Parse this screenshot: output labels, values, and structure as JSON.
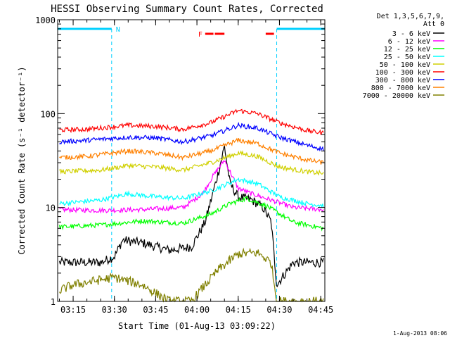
{
  "chart_data": {
    "type": "line",
    "title": "HESSI Observing Summary Count Rates, Corrected",
    "ylabel": "Corrected Count Rate (s⁻¹ detector⁻¹)",
    "xlabel": "Start Time (01-Aug-13 03:09:22)",
    "stamp": "1-Aug-2013 08:06",
    "y_scale": "log",
    "ylim": [
      1,
      1000
    ],
    "xlim": [
      "03:09:22",
      "04:46:30"
    ],
    "x_ticks": [
      "03:15",
      "03:30",
      "03:45",
      "04:00",
      "04:15",
      "04:30",
      "04:45"
    ],
    "y_ticks": [
      "1",
      "10",
      "100",
      "1000"
    ],
    "legend_header": [
      "Det 1,3,5,6,7,9,",
      "Att 0"
    ],
    "legend_position": "right",
    "flags": [
      {
        "label": "N",
        "color": "#00d0ff",
        "spans": [
          [
            "03:09:22",
            "03:29"
          ],
          [
            "04:29",
            "04:46:30"
          ]
        ],
        "dashed_lines": [
          "03:29",
          "04:29",
          "04:46:30"
        ]
      },
      {
        "label": "F",
        "color": "#ff0000",
        "spans": [
          [
            "04:03",
            "04:06"
          ],
          [
            "04:06:30",
            "04:10"
          ],
          [
            "04:25",
            "04:28"
          ]
        ]
      }
    ],
    "series": [
      {
        "name": "3 - 6 keV",
        "color": "#000000",
        "values": [
          {
            "x": "03:10",
            "y": 2.6
          },
          {
            "x": "03:25",
            "y": 2.6
          },
          {
            "x": "03:30",
            "y": 3.0
          },
          {
            "x": "03:33",
            "y": 4.5
          },
          {
            "x": "03:40",
            "y": 4.2
          },
          {
            "x": "03:50",
            "y": 3.5
          },
          {
            "x": "03:58",
            "y": 3.8
          },
          {
            "x": "04:03",
            "y": 7
          },
          {
            "x": "04:06",
            "y": 15
          },
          {
            "x": "04:08",
            "y": 25
          },
          {
            "x": "04:10",
            "y": 45
          },
          {
            "x": "04:12",
            "y": 18
          },
          {
            "x": "04:15",
            "y": 13
          },
          {
            "x": "04:20",
            "y": 12
          },
          {
            "x": "04:24",
            "y": 10
          },
          {
            "x": "04:27",
            "y": 7
          },
          {
            "x": "04:29",
            "y": 1.5
          },
          {
            "x": "04:35",
            "y": 2.6
          },
          {
            "x": "04:46",
            "y": 2.6
          }
        ]
      },
      {
        "name": "6 - 12 keV",
        "color": "#ff00ff",
        "values": [
          {
            "x": "03:10",
            "y": 9.5
          },
          {
            "x": "03:25",
            "y": 9.3
          },
          {
            "x": "03:40",
            "y": 9.5
          },
          {
            "x": "03:55",
            "y": 10
          },
          {
            "x": "04:02",
            "y": 14
          },
          {
            "x": "04:06",
            "y": 22
          },
          {
            "x": "04:10",
            "y": 32
          },
          {
            "x": "04:15",
            "y": 16
          },
          {
            "x": "04:20",
            "y": 14
          },
          {
            "x": "04:27",
            "y": 12
          },
          {
            "x": "04:35",
            "y": 10
          },
          {
            "x": "04:46",
            "y": 9.5
          }
        ]
      },
      {
        "name": "12 - 25 keV",
        "color": "#00ff00",
        "values": [
          {
            "x": "03:10",
            "y": 6.2
          },
          {
            "x": "03:25",
            "y": 6.5
          },
          {
            "x": "03:40",
            "y": 7.2
          },
          {
            "x": "03:55",
            "y": 6.8
          },
          {
            "x": "04:05",
            "y": 8.5
          },
          {
            "x": "04:12",
            "y": 11
          },
          {
            "x": "04:18",
            "y": 12.5
          },
          {
            "x": "04:25",
            "y": 10.5
          },
          {
            "x": "04:35",
            "y": 7
          },
          {
            "x": "04:46",
            "y": 6
          }
        ]
      },
      {
        "name": "25 - 50 keV",
        "color": "#00ffff",
        "values": [
          {
            "x": "03:10",
            "y": 11
          },
          {
            "x": "03:25",
            "y": 12
          },
          {
            "x": "03:35",
            "y": 14
          },
          {
            "x": "03:45",
            "y": 13
          },
          {
            "x": "03:55",
            "y": 12.5
          },
          {
            "x": "04:05",
            "y": 15
          },
          {
            "x": "04:15",
            "y": 20
          },
          {
            "x": "04:22",
            "y": 18
          },
          {
            "x": "04:30",
            "y": 13
          },
          {
            "x": "04:40",
            "y": 11
          },
          {
            "x": "04:46",
            "y": 10.5
          }
        ]
      },
      {
        "name": "50 - 100 keV",
        "color": "#d0d000",
        "values": [
          {
            "x": "03:10",
            "y": 24
          },
          {
            "x": "03:25",
            "y": 25
          },
          {
            "x": "03:35",
            "y": 28
          },
          {
            "x": "03:45",
            "y": 27
          },
          {
            "x": "03:55",
            "y": 25
          },
          {
            "x": "04:05",
            "y": 30
          },
          {
            "x": "04:15",
            "y": 38
          },
          {
            "x": "04:22",
            "y": 35
          },
          {
            "x": "04:30",
            "y": 27
          },
          {
            "x": "04:40",
            "y": 24
          },
          {
            "x": "04:46",
            "y": 23
          }
        ]
      },
      {
        "name": "100 - 300 keV",
        "color": "#ff0000",
        "values": [
          {
            "x": "03:10",
            "y": 67
          },
          {
            "x": "03:20",
            "y": 68
          },
          {
            "x": "03:35",
            "y": 75
          },
          {
            "x": "03:45",
            "y": 73
          },
          {
            "x": "03:55",
            "y": 68
          },
          {
            "x": "04:05",
            "y": 80
          },
          {
            "x": "04:15",
            "y": 108
          },
          {
            "x": "04:22",
            "y": 100
          },
          {
            "x": "04:30",
            "y": 80
          },
          {
            "x": "04:40",
            "y": 66
          },
          {
            "x": "04:46",
            "y": 62
          }
        ]
      },
      {
        "name": "300 - 800 keV",
        "color": "#0000ff",
        "values": [
          {
            "x": "03:10",
            "y": 50
          },
          {
            "x": "03:20",
            "y": 52
          },
          {
            "x": "03:35",
            "y": 56
          },
          {
            "x": "03:45",
            "y": 55
          },
          {
            "x": "03:55",
            "y": 50
          },
          {
            "x": "04:05",
            "y": 58
          },
          {
            "x": "04:15",
            "y": 75
          },
          {
            "x": "04:22",
            "y": 70
          },
          {
            "x": "04:30",
            "y": 56
          },
          {
            "x": "04:40",
            "y": 46
          },
          {
            "x": "04:46",
            "y": 42
          }
        ]
      },
      {
        "name": "800 - 7000 keV",
        "color": "#ff8000",
        "values": [
          {
            "x": "03:10",
            "y": 34
          },
          {
            "x": "03:20",
            "y": 35
          },
          {
            "x": "03:35",
            "y": 40
          },
          {
            "x": "03:45",
            "y": 38
          },
          {
            "x": "03:55",
            "y": 34
          },
          {
            "x": "04:05",
            "y": 40
          },
          {
            "x": "04:15",
            "y": 52
          },
          {
            "x": "04:22",
            "y": 48
          },
          {
            "x": "04:30",
            "y": 38
          },
          {
            "x": "04:40",
            "y": 32
          },
          {
            "x": "04:46",
            "y": 30
          }
        ]
      },
      {
        "name": "7000 - 20000 keV",
        "color": "#808000",
        "values": [
          {
            "x": "03:10",
            "y": 1.3
          },
          {
            "x": "03:15",
            "y": 1.5
          },
          {
            "x": "03:30",
            "y": 1.8
          },
          {
            "x": "03:40",
            "y": 1.5
          },
          {
            "x": "03:50",
            "y": 1.0
          },
          {
            "x": "03:58",
            "y": 1.0
          },
          {
            "x": "04:03",
            "y": 1.5
          },
          {
            "x": "04:08",
            "y": 2.2
          },
          {
            "x": "04:15",
            "y": 3.2
          },
          {
            "x": "04:22",
            "y": 3.3
          },
          {
            "x": "04:27",
            "y": 2.6
          },
          {
            "x": "04:29",
            "y": 1.0
          },
          {
            "x": "04:46",
            "y": 1.0
          }
        ]
      }
    ]
  }
}
